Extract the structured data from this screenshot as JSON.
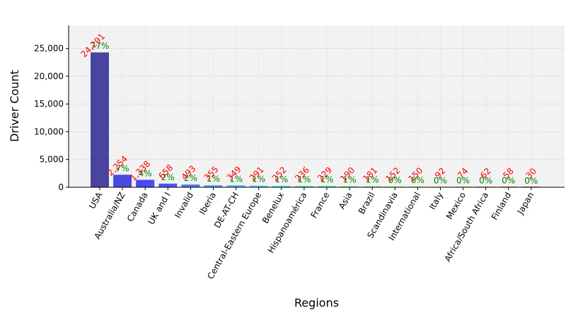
{
  "chart_data": {
    "type": "bar",
    "categories": [
      "USA",
      "Australia/NZ",
      "Canada",
      "UK and I",
      "Invalid",
      "Iberia",
      "DE-AT-CH",
      "Central-Eastern Europe",
      "Benelux",
      "Hispanoamérica",
      "France",
      "Asia",
      "Brazil",
      "Scandinavia",
      "International",
      "Italy",
      "Mexico",
      "Africa/South Africa",
      "Finland",
      "Japan"
    ],
    "values": [
      24291,
      2254,
      1338,
      658,
      493,
      355,
      349,
      291,
      252,
      236,
      229,
      190,
      181,
      152,
      150,
      92,
      74,
      62,
      58,
      30
    ],
    "value_labels": [
      "24,291",
      "2,254",
      "1,338",
      "658",
      "493",
      "355",
      "349",
      "291",
      "252",
      "236",
      "229",
      "190",
      "181",
      "152",
      "150",
      "92",
      "74",
      "62",
      "58",
      "30"
    ],
    "percent_labels": [
      "77%",
      "7%",
      "4%",
      "2%",
      "2%",
      "1%",
      "1%",
      "1%",
      "1%",
      "1%",
      "1%",
      "1%",
      "1%",
      "0%",
      "0%",
      "0%",
      "0%",
      "0%",
      "0%",
      "0%"
    ],
    "bar_colors": [
      "#1e1888",
      "#1e1ed8",
      "#1e1ef0",
      "#1e2cf8",
      "#1e5ef0",
      "#1e86e6",
      "#1ea6e6",
      "#1ec4e0",
      "#1ed8cc",
      "#1ee0b0",
      "#1ee68c",
      "#30ee6e",
      "#5af050",
      "#8cf032",
      "#b8ee1e",
      "#e0d81e",
      "#f0a81e",
      "#f0781e",
      "#e8461e",
      "#d81e1e"
    ],
    "xlabel": "Regions",
    "ylabel": "Driver Count",
    "ylim": [
      0,
      29150
    ],
    "yticks": [
      0,
      5000,
      10000,
      15000,
      20000,
      25000
    ],
    "ytick_labels": [
      "0",
      "5,000",
      "10,000",
      "15,000",
      "20,000",
      "25,000"
    ],
    "grid": true
  }
}
